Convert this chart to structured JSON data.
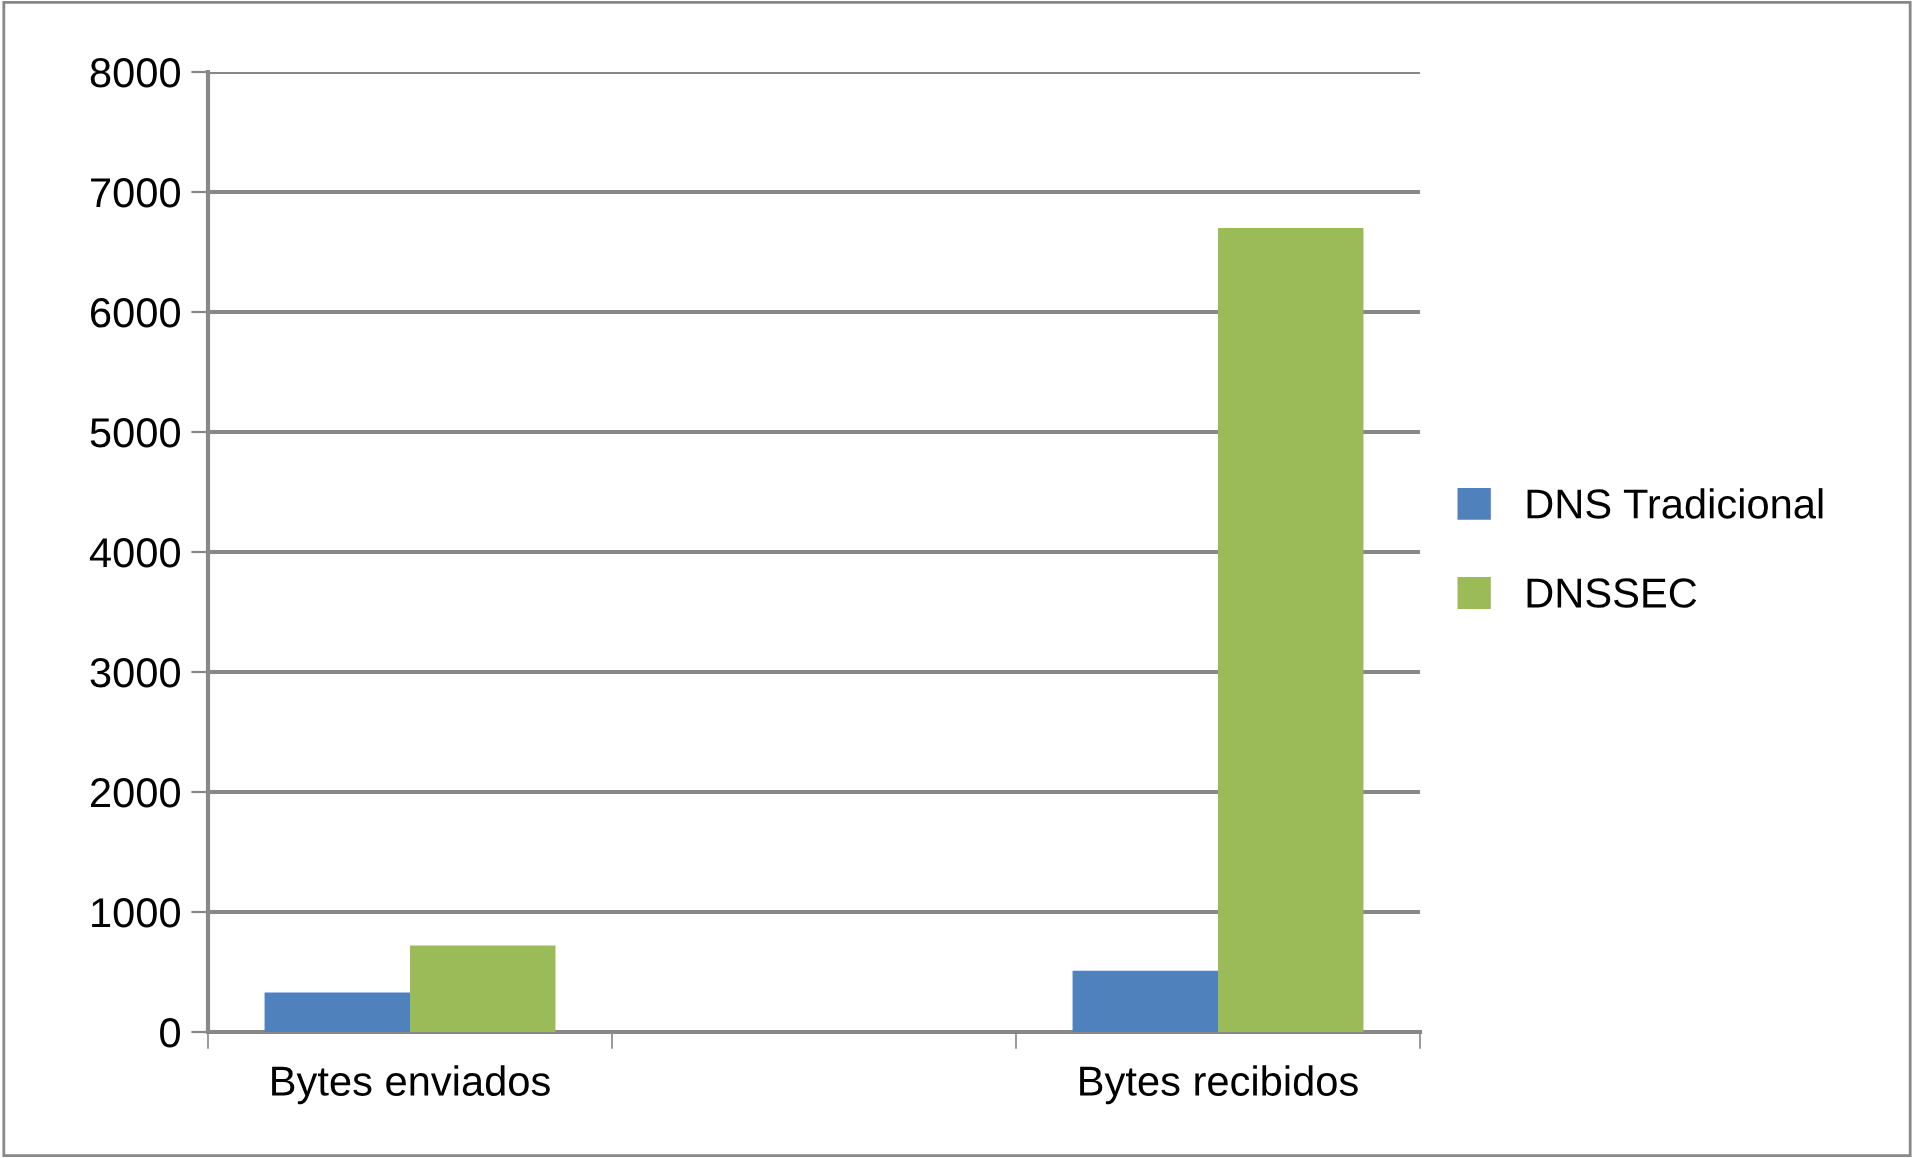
{
  "chart_data": {
    "type": "bar",
    "categories": [
      "Bytes enviados",
      null,
      "Bytes recibidos"
    ],
    "series": [
      {
        "name": "DNS Tradicional",
        "color": "#4f81bd",
        "values": [
          330,
          null,
          510
        ]
      },
      {
        "name": "DNSSEC",
        "color": "#9bbb59",
        "values": [
          720,
          null,
          6700
        ]
      }
    ],
    "ylim": [
      0,
      8000
    ],
    "yticks": [
      0,
      1000,
      2000,
      3000,
      4000,
      5000,
      6000,
      7000,
      8000
    ],
    "grid": "y",
    "legend": "right"
  }
}
